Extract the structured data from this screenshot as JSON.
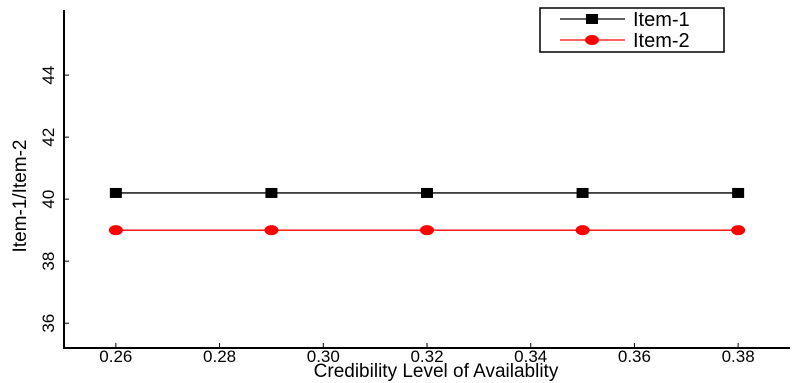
{
  "chart_data": {
    "type": "line",
    "title": "",
    "xlabel": "Credibility Level of Availablity",
    "ylabel": "Item-1/Item-2",
    "x": [
      0.26,
      0.29,
      0.32,
      0.35,
      0.38
    ],
    "xlim": [
      0.25,
      0.39
    ],
    "ylim": [
      35.2,
      46.1
    ],
    "xticks": [
      "0.26",
      "0.28",
      "0.30",
      "0.32",
      "0.34",
      "0.36",
      "0.38"
    ],
    "yticks": [
      "36",
      "38",
      "40",
      "42",
      "44"
    ],
    "grid": false,
    "legend_position": "top-right",
    "series": [
      {
        "name": "Item-1",
        "values": [
          40.2,
          40.2,
          40.2,
          40.2,
          40.2
        ],
        "color": "#000000",
        "marker": "square"
      },
      {
        "name": "Item-2",
        "values": [
          39.0,
          39.0,
          39.0,
          39.0,
          39.0
        ],
        "color": "#ff0000",
        "marker": "circle"
      }
    ]
  }
}
